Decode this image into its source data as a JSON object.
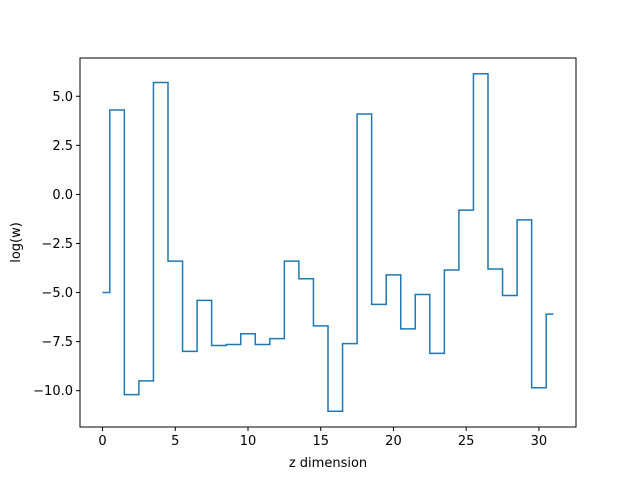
{
  "chart_data": {
    "type": "line",
    "drawstyle": "steps-mid",
    "title": "",
    "xlabel": "z dimension",
    "ylabel": "log(w)",
    "xlim": [
      -1.55,
      32.55
    ],
    "ylim": [
      -11.85,
      6.95
    ],
    "x_ticks": [
      0,
      5,
      10,
      15,
      20,
      25,
      30
    ],
    "x_tick_labels": [
      "0",
      "5",
      "10",
      "15",
      "20",
      "25",
      "30"
    ],
    "y_ticks": [
      -10.0,
      -7.5,
      -5.0,
      -2.5,
      0.0,
      2.5,
      5.0
    ],
    "y_tick_labels": [
      "−10.0",
      "−7.5",
      "−5.0",
      "−2.5",
      "0.0",
      "2.5",
      "5.0"
    ],
    "grid": false,
    "series": [
      {
        "color": "#1f77b4",
        "x": [
          0,
          1,
          2,
          3,
          4,
          5,
          6,
          7,
          8,
          9,
          10,
          11,
          12,
          13,
          14,
          15,
          16,
          17,
          18,
          19,
          20,
          21,
          22,
          23,
          24,
          25,
          26,
          27,
          28,
          29,
          30,
          31
        ],
        "y": [
          -5.0,
          4.3,
          -10.2,
          -9.5,
          5.7,
          -3.4,
          -8.0,
          -5.4,
          -7.7,
          -7.65,
          -7.1,
          -7.65,
          -7.35,
          -3.4,
          -4.3,
          -6.7,
          -11.05,
          -7.6,
          4.1,
          -5.6,
          -4.1,
          -6.85,
          -5.1,
          -8.1,
          -3.85,
          -0.8,
          6.15,
          -3.8,
          -5.15,
          -1.3,
          -9.85,
          -6.1
        ]
      }
    ]
  }
}
